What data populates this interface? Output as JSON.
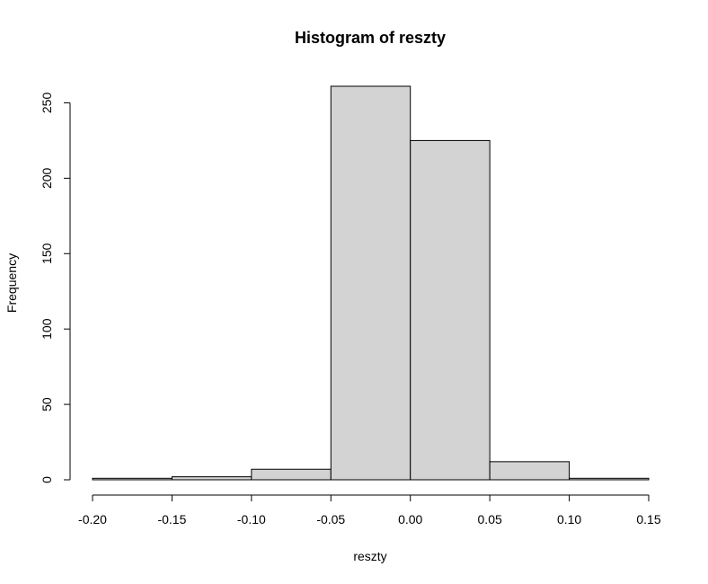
{
  "chart_data": {
    "type": "bar",
    "title": "Histogram of reszty",
    "xlabel": "reszty",
    "ylabel": "Frequency",
    "bins": [
      {
        "from": -0.2,
        "to": -0.15,
        "count": 1
      },
      {
        "from": -0.15,
        "to": -0.1,
        "count": 2
      },
      {
        "from": -0.1,
        "to": -0.05,
        "count": 7
      },
      {
        "from": -0.05,
        "to": 0.0,
        "count": 261
      },
      {
        "from": 0.0,
        "to": 0.05,
        "count": 225
      },
      {
        "from": 0.05,
        "to": 0.1,
        "count": 12
      },
      {
        "from": 0.1,
        "to": 0.15,
        "count": 1
      }
    ],
    "xlim": [
      -0.2,
      0.15
    ],
    "ylim": [
      0,
      261
    ],
    "x_ticks": [
      -0.2,
      -0.15,
      -0.1,
      -0.05,
      0.0,
      0.05,
      0.1,
      0.15
    ],
    "x_tick_labels": [
      "-0.20",
      "-0.15",
      "-0.10",
      "-0.05",
      "0.00",
      "0.05",
      "0.10",
      "0.15"
    ],
    "y_ticks": [
      0,
      50,
      100,
      150,
      200,
      250
    ],
    "y_tick_labels": [
      "0",
      "50",
      "100",
      "150",
      "200",
      "250"
    ],
    "bar_fill": "#d3d3d3",
    "bar_stroke": "#000000",
    "grid": false
  }
}
